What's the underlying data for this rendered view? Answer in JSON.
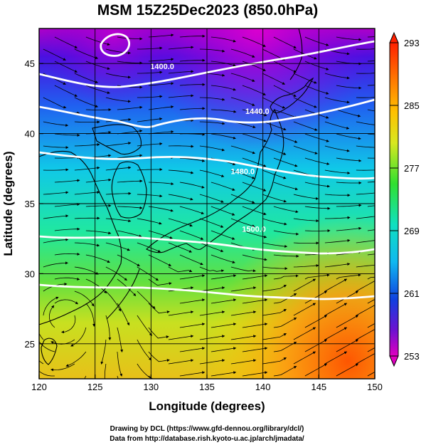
{
  "title": "MSM 15Z25Dec2023 (850.0hPa)",
  "xlabel": "Longitude (degrees)",
  "ylabel": "Latitude  (degrees)",
  "credits": [
    "Drawing by DCL (https://www.gfd-dennou.org/library/dcl/)",
    "Data from http://database.rish.kyoto-u.ac.jp/arch/jmadata/"
  ],
  "colors": {
    "cold": "#d000d0",
    "mid": "#00e0e0",
    "warm": "#ff7a00",
    "contour": "#ffffff",
    "vectors": "#000000"
  },
  "chart_data": {
    "type": "heatmap",
    "field": "temperature",
    "xlim": [
      120,
      150
    ],
    "ylim": [
      22.5,
      47.5
    ],
    "x_ticks": [
      120,
      125,
      130,
      135,
      140,
      145,
      150
    ],
    "y_ticks": [
      25,
      30,
      35,
      40,
      45
    ],
    "colorbar": {
      "min": 253,
      "max": 293,
      "ticks": [
        293,
        285,
        277,
        269,
        261,
        253
      ],
      "extend": "both"
    },
    "contour_labels": [
      {
        "text": "1400.0",
        "lon": 131.0,
        "lat": 44.6
      },
      {
        "text": "1440.0",
        "lon": 139.5,
        "lat": 41.4
      },
      {
        "text": "1480.0",
        "lon": 138.2,
        "lat": 37.1
      },
      {
        "text": "1500.0",
        "lon": 139.2,
        "lat": 33.0
      }
    ],
    "overlays": [
      "geopotential height contours",
      "wind streamlines",
      "coastlines",
      "lat-lon grid"
    ]
  }
}
